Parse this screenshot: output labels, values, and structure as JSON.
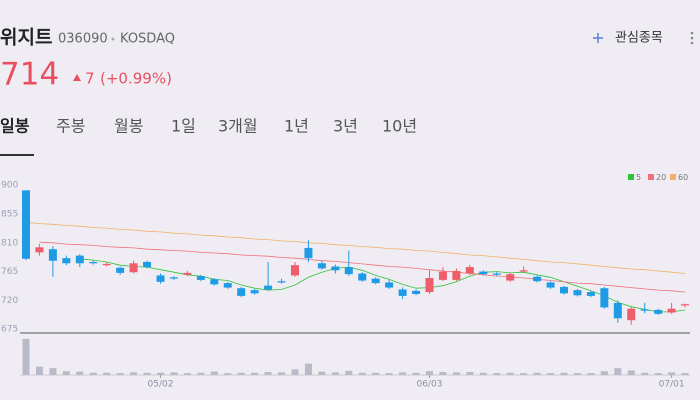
{
  "header": {
    "name": "위지트",
    "code": "036090",
    "market": "KOSDAQ",
    "watch": "관심종목",
    "price": "714",
    "change": "7",
    "change_pct": "(+0.99%)"
  },
  "tabs": [
    "일봉",
    "주봉",
    "월봉",
    "1일",
    "3개월",
    "1년",
    "3년",
    "10년"
  ],
  "chart_data": {
    "type": "candlestick",
    "categories": [
      null,
      null,
      null,
      null,
      null,
      null,
      null,
      null,
      null,
      null,
      "05/02",
      null,
      null,
      null,
      null,
      null,
      null,
      null,
      null,
      null,
      null,
      null,
      null,
      null,
      null,
      null,
      null,
      null,
      null,
      null,
      "06/03",
      null,
      null,
      null,
      null,
      null,
      null,
      null,
      null,
      null,
      null,
      null,
      null,
      null,
      null,
      null,
      null,
      null,
      "07/01",
      null
    ],
    "open": [
      892,
      795,
      800,
      786,
      790,
      780,
      775,
      771,
      764,
      780,
      759,
      756,
      760,
      758,
      753,
      747,
      739,
      736,
      743,
      750,
      759,
      802,
      778,
      773,
      772,
      762,
      754,
      748,
      737,
      735,
      733,
      752,
      752,
      762,
      765,
      762,
      751,
      765,
      757,
      748,
      741,
      736,
      733,
      739,
      716,
      689,
      706,
      705,
      701,
      712
    ],
    "high": [
      892,
      808,
      805,
      790,
      792,
      782,
      779,
      773,
      782,
      782,
      762,
      758,
      766,
      760,
      755,
      749,
      741,
      738,
      780,
      754,
      780,
      814,
      782,
      776,
      798,
      764,
      756,
      752,
      740,
      737,
      767,
      772,
      770,
      775,
      767,
      764,
      763,
      773,
      759,
      750,
      743,
      738,
      735,
      741,
      720,
      710,
      716,
      707,
      716,
      715
    ],
    "low": [
      783,
      790,
      757,
      775,
      772,
      776,
      773,
      760,
      762,
      770,
      746,
      752,
      758,
      750,
      743,
      738,
      725,
      729,
      735,
      746,
      757,
      780,
      768,
      762,
      758,
      749,
      745,
      738,
      722,
      728,
      730,
      750,
      750,
      760,
      759,
      758,
      749,
      763,
      748,
      738,
      729,
      726,
      725,
      707,
      685,
      682,
      700,
      697,
      699,
      709
    ],
    "close": [
      785,
      803,
      782,
      778,
      778,
      778,
      777,
      763,
      778,
      772,
      749,
      754,
      763,
      752,
      745,
      740,
      727,
      731,
      737,
      748,
      775,
      786,
      770,
      767,
      761,
      751,
      747,
      740,
      727,
      730,
      755,
      765,
      766,
      772,
      761,
      760,
      761,
      767,
      750,
      740,
      731,
      728,
      727,
      709,
      692,
      707,
      704,
      699,
      707,
      714
    ],
    "up_color": "#ef5d6a",
    "down_color": "#1f9be6",
    "series": [
      {
        "name": "5",
        "color": "#2fc23a",
        "values": [
          null,
          null,
          null,
          null,
          785,
          783,
          780,
          775,
          773,
          772,
          768,
          764,
          760,
          758,
          753,
          751,
          744,
          739,
          736,
          737,
          744,
          756,
          764,
          770,
          772,
          767,
          759,
          753,
          745,
          739,
          740,
          743,
          749,
          758,
          764,
          765,
          763,
          764,
          760,
          756,
          749,
          742,
          735,
          727,
          717,
          710,
          706,
          702,
          702,
          705
        ]
      },
      {
        "name": "20",
        "color": "#f0707a",
        "values": [
          null,
          811,
          810,
          808,
          807,
          806,
          804,
          803,
          802,
          800,
          799,
          798,
          797,
          795,
          794,
          793,
          791,
          790,
          789,
          787,
          786,
          784,
          782,
          781,
          779,
          777,
          775,
          773,
          772,
          770,
          768,
          766,
          764,
          762,
          760,
          758,
          757,
          755,
          753,
          751,
          749,
          747,
          746,
          744,
          742,
          740,
          738,
          736,
          735,
          733
        ]
      },
      {
        "name": "60",
        "color": "#f2b066",
        "values": [
          842,
          840,
          839,
          837,
          836,
          834,
          833,
          831,
          830,
          828,
          827,
          825,
          824,
          822,
          821,
          819,
          818,
          816,
          815,
          813,
          812,
          810,
          809,
          807,
          806,
          804,
          803,
          801,
          800,
          798,
          797,
          795,
          793,
          791,
          790,
          788,
          786,
          784,
          782,
          780,
          779,
          777,
          775,
          773,
          771,
          769,
          768,
          766,
          764,
          762
        ]
      }
    ],
    "volume": [
      95,
      22,
      18,
      10,
      9,
      6,
      6,
      5,
      7,
      6,
      6,
      7,
      5,
      6,
      9,
      5,
      6,
      6,
      8,
      7,
      15,
      30,
      9,
      7,
      11,
      6,
      6,
      5,
      7,
      6,
      10,
      8,
      7,
      8,
      6,
      5,
      6,
      5,
      6,
      5,
      6,
      5,
      5,
      10,
      18,
      12,
      6,
      5,
      7,
      5
    ],
    "volume_color": "#b7bac8",
    "vlim": [
      0,
      100
    ],
    "ylim": [
      669,
      916
    ],
    "yticks": [
      900,
      855,
      810,
      765,
      720,
      675
    ]
  }
}
